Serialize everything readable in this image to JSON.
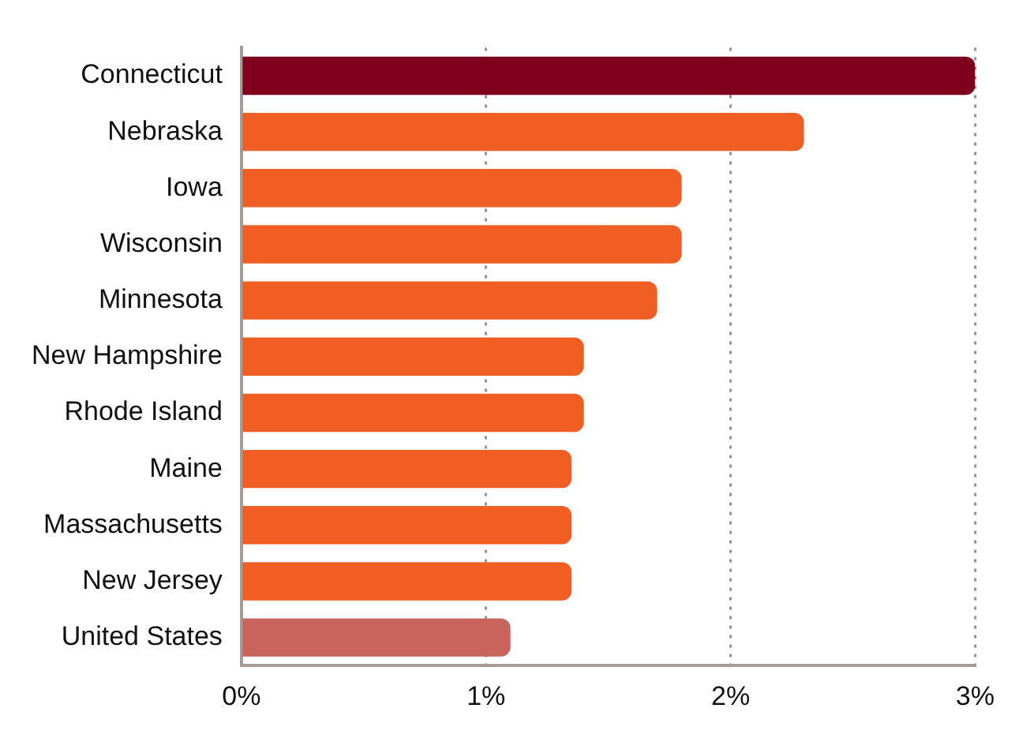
{
  "chart_data": {
    "type": "bar",
    "orientation": "horizontal",
    "categories": [
      "Connecticut",
      "Nebraska",
      "Iowa",
      "Wisconsin",
      "Minnesota",
      "New Hampshire",
      "Rhode Island",
      "Maine",
      "Massachusetts",
      "New Jersey",
      "United States"
    ],
    "values": [
      3.0,
      2.3,
      1.8,
      1.8,
      1.7,
      1.4,
      1.4,
      1.35,
      1.35,
      1.35,
      1.1
    ],
    "colors": [
      "#7f001c",
      "#f15e24",
      "#f15e24",
      "#f15e24",
      "#f15e24",
      "#f15e24",
      "#f15e24",
      "#f15e24",
      "#f15e24",
      "#f15e24",
      "#c8645c"
    ],
    "xlim": [
      0,
      3
    ],
    "xticks": [
      {
        "value": 0,
        "label": "0%"
      },
      {
        "value": 1,
        "label": "1%"
      },
      {
        "value": 2,
        "label": "2%"
      },
      {
        "value": 3,
        "label": "3%"
      }
    ],
    "grid": "x",
    "legend": false
  }
}
